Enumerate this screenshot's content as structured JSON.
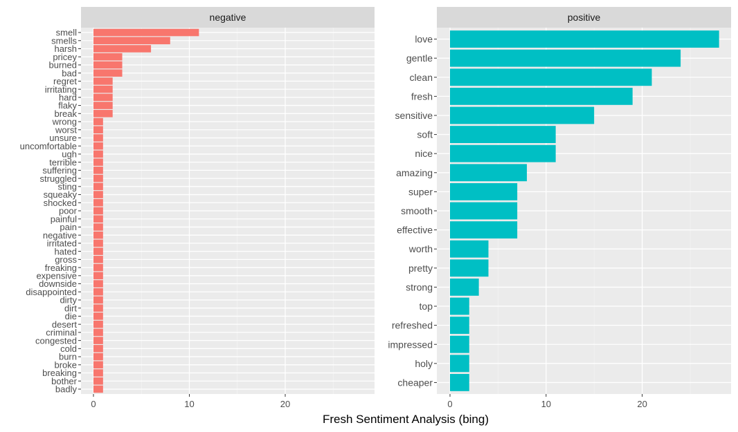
{
  "chart_data": {
    "type": "bar",
    "orientation": "horizontal",
    "xlabel": "Fresh Sentiment Analysis (bing)",
    "ylabel": "",
    "xlim": [
      0,
      28
    ],
    "x_ticks": [
      0,
      10,
      20
    ],
    "grid": true,
    "shared_x_axis": true,
    "panels": [
      {
        "name": "negative",
        "color": "#F8766D",
        "categories": [
          "smell",
          "smells",
          "harsh",
          "pricey",
          "burned",
          "bad",
          "regret",
          "irritating",
          "hard",
          "flaky",
          "break",
          "wrong",
          "worst",
          "unsure",
          "uncomfortable",
          "ugh",
          "terrible",
          "suffering",
          "struggled",
          "sting",
          "squeaky",
          "shocked",
          "poor",
          "painful",
          "pain",
          "negative",
          "irritated",
          "hated",
          "gross",
          "freaking",
          "expensive",
          "downside",
          "disappointed",
          "dirty",
          "dirt",
          "die",
          "desert",
          "criminal",
          "congested",
          "cold",
          "burn",
          "broke",
          "breaking",
          "bother",
          "badly"
        ],
        "values": [
          11,
          8,
          6,
          3,
          3,
          3,
          2,
          2,
          2,
          2,
          2,
          1,
          1,
          1,
          1,
          1,
          1,
          1,
          1,
          1,
          1,
          1,
          1,
          1,
          1,
          1,
          1,
          1,
          1,
          1,
          1,
          1,
          1,
          1,
          1,
          1,
          1,
          1,
          1,
          1,
          1,
          1,
          1,
          1,
          1
        ]
      },
      {
        "name": "positive",
        "color": "#00BFC4",
        "categories": [
          "love",
          "gentle",
          "clean",
          "fresh",
          "sensitive",
          "soft",
          "nice",
          "amazing",
          "super",
          "smooth",
          "effective",
          "worth",
          "pretty",
          "strong",
          "top",
          "refreshed",
          "impressed",
          "holy",
          "cheaper"
        ],
        "values": [
          28,
          24,
          21,
          19,
          15,
          11,
          11,
          8,
          7,
          7,
          7,
          4,
          4,
          3,
          2,
          2,
          2,
          2,
          2
        ]
      }
    ]
  }
}
